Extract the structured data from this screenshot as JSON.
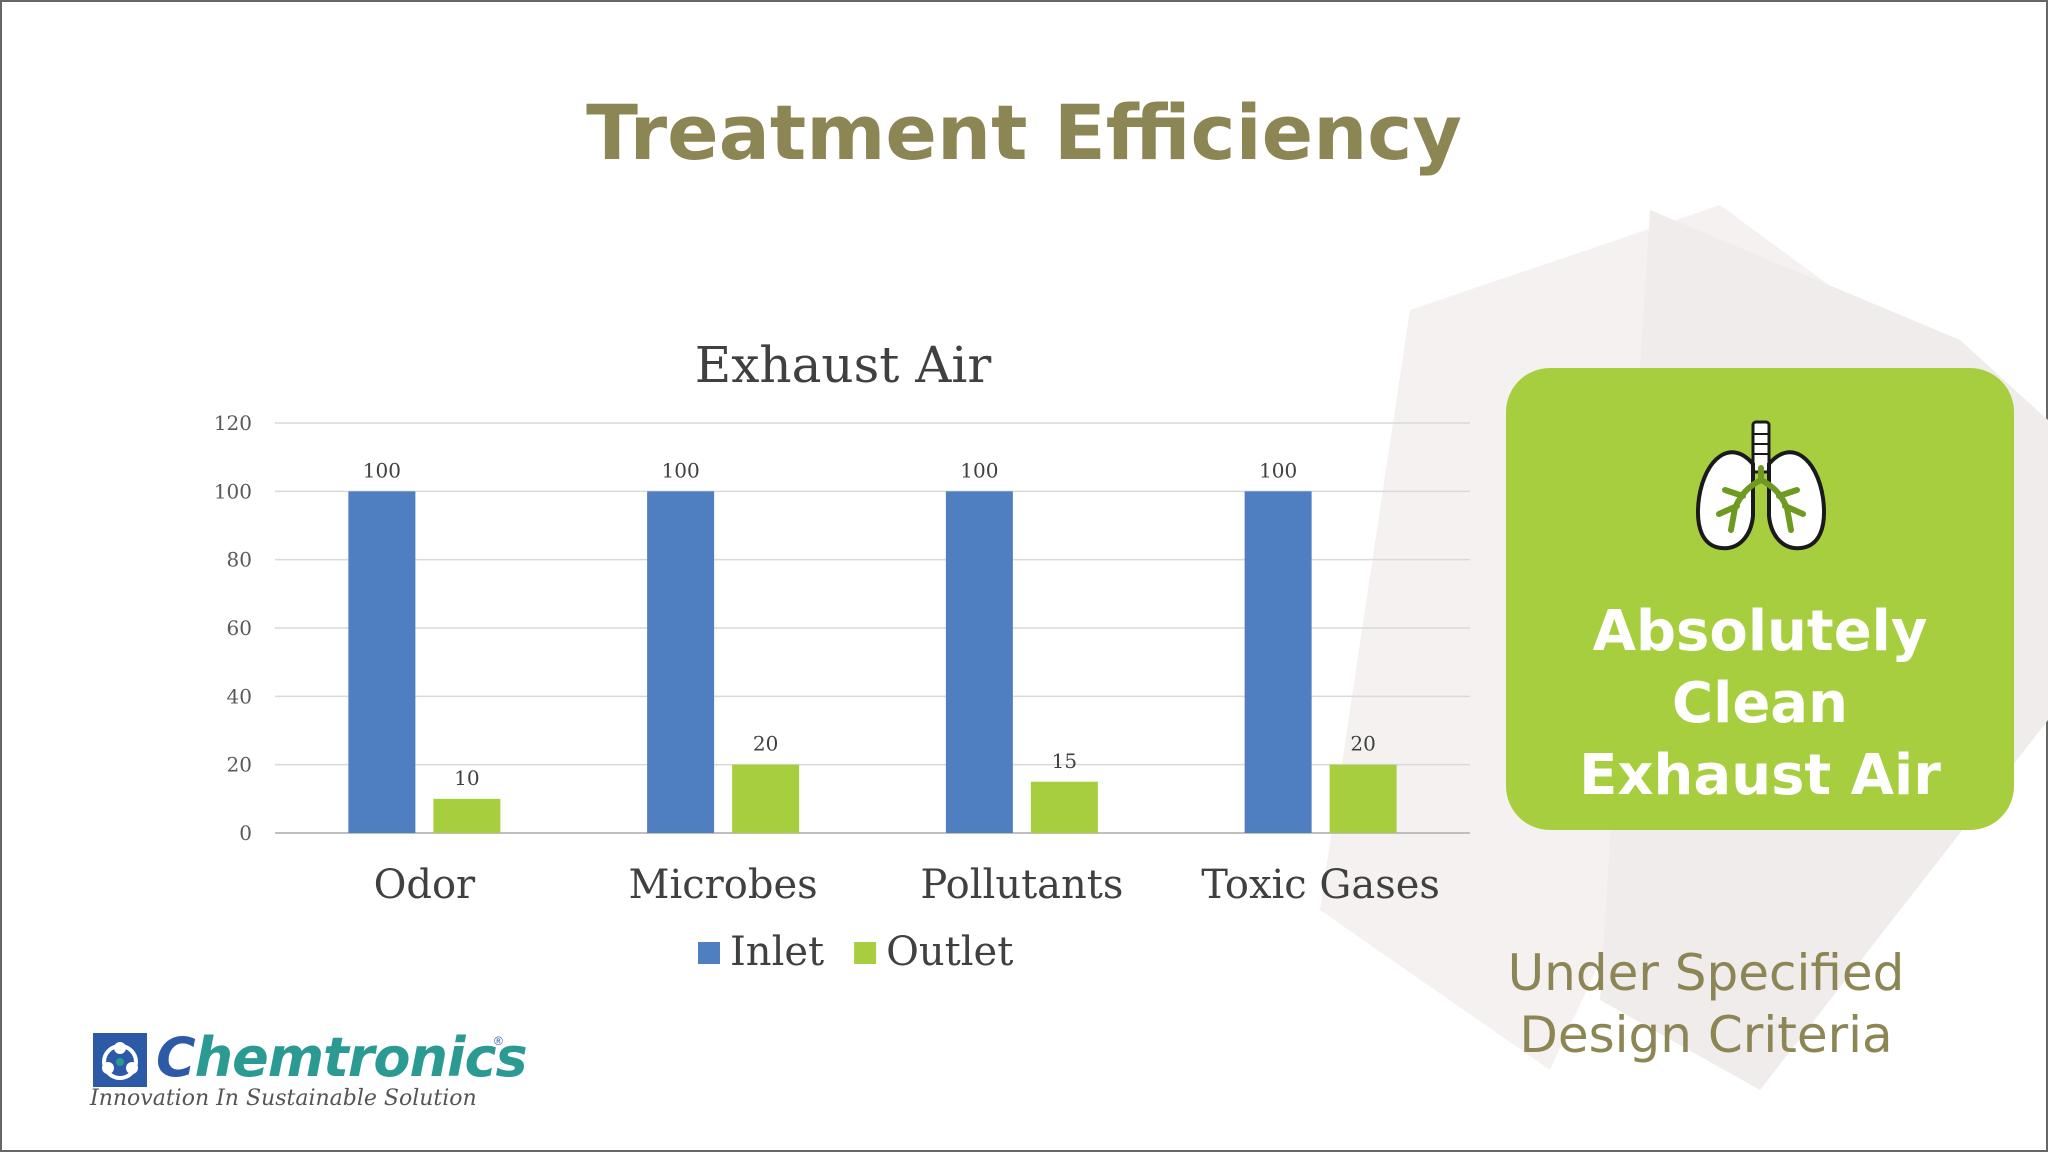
{
  "slide": {
    "title": "Treatment Efficiency"
  },
  "chart_data": {
    "type": "bar",
    "title": "Exhaust Air",
    "categories": [
      "Odor",
      "Microbes",
      "Pollutants",
      "Toxic Gases"
    ],
    "series": [
      {
        "name": "Inlet",
        "color": "#4f7fc0",
        "values": [
          100,
          100,
          100,
          100
        ]
      },
      {
        "name": "Outlet",
        "color": "#a7ce3f",
        "values": [
          10,
          20,
          15,
          20
        ]
      }
    ],
    "ylim": [
      0,
      120
    ],
    "yticks": [
      0,
      20,
      40,
      60,
      80,
      100,
      120
    ],
    "grid": true,
    "legend": "bottom",
    "xlabel": "",
    "ylabel": ""
  },
  "callout": {
    "icon": "lungs-icon",
    "line1": "Absolutely Clean",
    "line2": "Exhaust Air"
  },
  "criteria": {
    "line1": "Under Specified",
    "line2": "Design Criteria"
  },
  "logo": {
    "brand_lead": "C",
    "brand_rest": "hemtronics",
    "registered": "®",
    "tagline": "Innovation In Sustainable Solution"
  },
  "colors": {
    "title": "#8c8554",
    "inlet": "#4f7fc0",
    "outlet": "#a7ce3f"
  }
}
